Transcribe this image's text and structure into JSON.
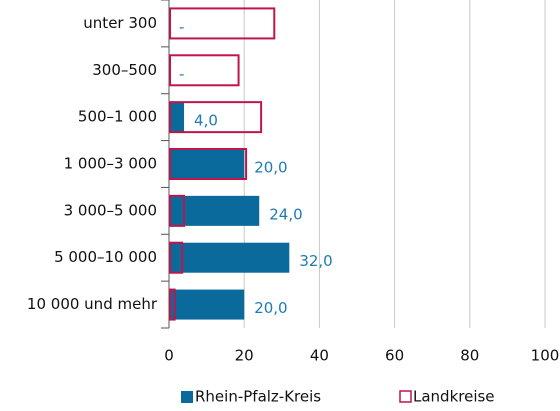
{
  "chart_data": {
    "type": "bar",
    "orientation": "horizontal",
    "categories": [
      "unter 300",
      "300–500",
      "500–1 000",
      "1 000–3 000",
      "3 000–5 000",
      "5 000–10 000",
      "10 000 und mehr"
    ],
    "series": [
      {
        "name": "Rhein-Pfalz-Kreis",
        "color": "#0b6a9c",
        "style": "filled",
        "values": [
          null,
          null,
          4,
          20,
          24,
          32,
          20
        ],
        "value_labels": [
          "-",
          "-",
          "4,0",
          "20,0",
          "24,0",
          "32,0",
          "20,0"
        ]
      },
      {
        "name": "Landkreise",
        "color": "#c0154b",
        "style": "outline",
        "values": [
          28,
          18.5,
          24.5,
          20.5,
          4,
          3.5,
          1.5
        ]
      }
    ],
    "xlim": [
      0,
      100
    ],
    "xticks": [
      0,
      20,
      40,
      60,
      80,
      100
    ],
    "grid": true,
    "legend": "bottom"
  }
}
